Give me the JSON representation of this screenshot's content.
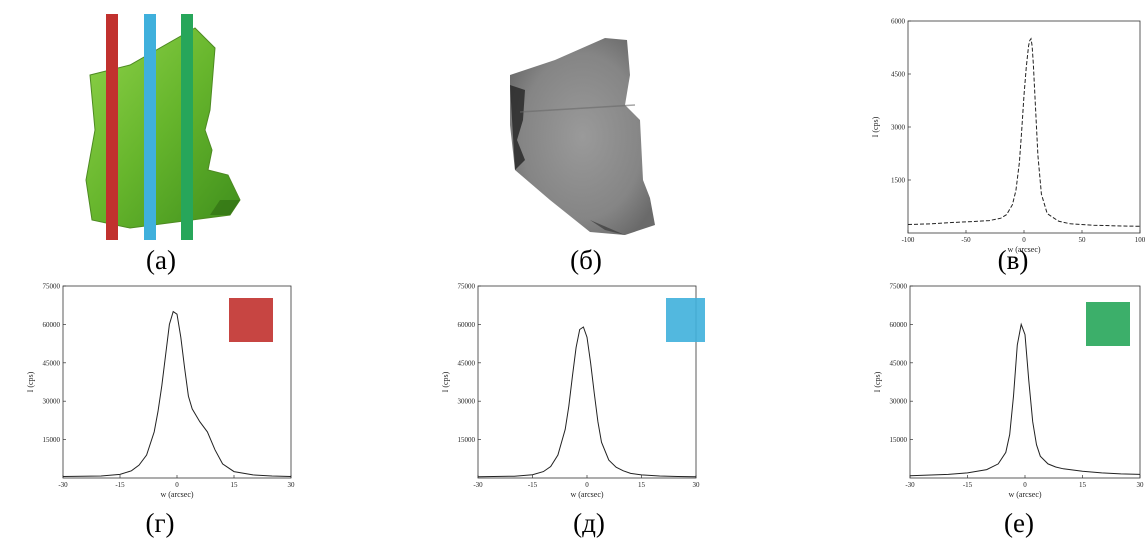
{
  "captions": {
    "a": "(а)",
    "b": "(б)",
    "c": "(в)",
    "d": "(г)",
    "e": "(д)",
    "f": "(е)"
  },
  "colors": {
    "red": "#c1312e",
    "blue": "#3fb0dc",
    "green": "#27a65a",
    "sample_green": "#6bbf2e",
    "gray_map": "#8a8a8a"
  },
  "chart_data": [
    {
      "id": "v",
      "type": "line",
      "line_style": "dashed",
      "xlabel": "w (arcsec)",
      "ylabel": "I (cps)",
      "xlim": [
        -100,
        100
      ],
      "ylim": [
        0,
        6000
      ],
      "xticks": [
        "-100",
        "-50",
        "0",
        "50",
        "100"
      ],
      "yticks": [
        "1500",
        "3000",
        "4500",
        "6000"
      ],
      "x": [
        -100,
        -80,
        -60,
        -40,
        -30,
        -20,
        -15,
        -10,
        -7,
        -4,
        -2,
        0,
        2,
        4,
        5,
        6,
        7,
        8,
        10,
        12,
        15,
        20,
        30,
        40,
        60,
        80,
        100
      ],
      "y": [
        240,
        260,
        300,
        330,
        350,
        420,
        520,
        800,
        1200,
        2000,
        2900,
        3900,
        4700,
        5300,
        5450,
        5500,
        5300,
        4800,
        3500,
        2200,
        1100,
        550,
        330,
        260,
        220,
        200,
        190
      ]
    },
    {
      "id": "g",
      "type": "line",
      "legend_color": "#c1312e",
      "xlabel": "w (arcsec)",
      "ylabel": "I (cps)",
      "xlim": [
        -30,
        30
      ],
      "ylim": [
        0,
        75000
      ],
      "xticks": [
        "-30",
        "-15",
        "0",
        "15",
        "30"
      ],
      "yticks": [
        "15000",
        "30000",
        "45000",
        "60000",
        "75000"
      ],
      "x": [
        -30,
        -20,
        -15,
        -12,
        -10,
        -8,
        -6,
        -5,
        -4,
        -3,
        -2,
        -1,
        0,
        1,
        2,
        3,
        4,
        6,
        8,
        10,
        12,
        15,
        20,
        25,
        30
      ],
      "y": [
        600,
        800,
        1400,
        2800,
        5000,
        9000,
        18000,
        26000,
        36000,
        48000,
        60000,
        65000,
        64000,
        55000,
        43000,
        32000,
        27000,
        22000,
        18000,
        11000,
        5500,
        2500,
        1200,
        800,
        600
      ]
    },
    {
      "id": "d",
      "type": "line",
      "legend_color": "#3fb0dc",
      "xlabel": "w (arcsec)",
      "ylabel": "I (cps)",
      "xlim": [
        -30,
        30
      ],
      "ylim": [
        0,
        75000
      ],
      "xticks": [
        "-30",
        "-15",
        "0",
        "15",
        "30"
      ],
      "yticks": [
        "15000",
        "30000",
        "45000",
        "60000",
        "75000"
      ],
      "x": [
        -30,
        -20,
        -15,
        -12,
        -10,
        -8,
        -6,
        -5,
        -4,
        -3,
        -2,
        -1,
        0,
        1,
        2,
        3,
        4,
        6,
        8,
        10,
        12,
        15,
        20,
        25,
        30
      ],
      "y": [
        500,
        700,
        1300,
        2500,
        4500,
        9000,
        19000,
        28000,
        40000,
        51000,
        58000,
        59000,
        55000,
        45000,
        33000,
        22000,
        14000,
        7000,
        4200,
        2800,
        1800,
        1200,
        800,
        600,
        500
      ]
    },
    {
      "id": "e",
      "type": "line",
      "legend_color": "#27a65a",
      "xlabel": "w (arcsec)",
      "ylabel": "I (cps)",
      "xlim": [
        -30,
        30
      ],
      "ylim": [
        0,
        75000
      ],
      "xticks": [
        "-30",
        "-15",
        "0",
        "15",
        "30"
      ],
      "yticks": [
        "15000",
        "30000",
        "45000",
        "60000",
        "75000"
      ],
      "x": [
        -30,
        -20,
        -15,
        -10,
        -7,
        -5,
        -4,
        -3,
        -2,
        -1,
        0,
        1,
        2,
        3,
        4,
        6,
        8,
        10,
        15,
        20,
        25,
        30
      ],
      "y": [
        900,
        1400,
        2000,
        3300,
        5500,
        10000,
        17000,
        32000,
        52000,
        60000,
        56000,
        38000,
        22000,
        13000,
        8500,
        5500,
        4300,
        3600,
        2600,
        2000,
        1600,
        1400
      ]
    }
  ]
}
